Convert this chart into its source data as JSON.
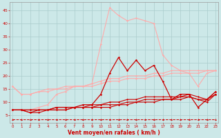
{
  "background_color": "#cce8e8",
  "grid_color": "#aacccc",
  "xlabel": "Vent moyen/en rafales ( km/h )",
  "xlabel_color": "#cc0000",
  "ylabel_color": "#cc0000",
  "yticks": [
    5,
    10,
    15,
    20,
    25,
    30,
    35,
    40,
    45
  ],
  "xticks": [
    0,
    1,
    2,
    3,
    4,
    5,
    6,
    7,
    8,
    9,
    10,
    11,
    12,
    13,
    14,
    15,
    16,
    17,
    18,
    19,
    20,
    21,
    22,
    23
  ],
  "xlim": [
    -0.3,
    23.3
  ],
  "ylim": [
    2,
    48
  ],
  "x": [
    0,
    1,
    2,
    3,
    4,
    5,
    6,
    7,
    8,
    9,
    10,
    11,
    12,
    13,
    14,
    15,
    16,
    17,
    18,
    19,
    20,
    21,
    22,
    23
  ],
  "lines": [
    {
      "y": [
        7,
        7,
        6,
        6,
        7,
        7,
        7,
        8,
        8,
        8,
        8,
        8,
        9,
        9,
        10,
        10,
        10,
        11,
        11,
        11,
        12,
        11,
        10,
        13
      ],
      "color": "#cc0000",
      "lw": 0.8,
      "marker": "D",
      "ms": 1.2,
      "zorder": 5
    },
    {
      "y": [
        7,
        7,
        6,
        7,
        7,
        7,
        7,
        8,
        8,
        8,
        9,
        9,
        9,
        10,
        10,
        11,
        11,
        11,
        11,
        12,
        12,
        11,
        11,
        14
      ],
      "color": "#cc0000",
      "lw": 0.8,
      "marker": "D",
      "ms": 1.2,
      "zorder": 5
    },
    {
      "y": [
        7,
        7,
        7,
        7,
        7,
        8,
        8,
        8,
        8,
        9,
        9,
        10,
        10,
        11,
        11,
        12,
        12,
        12,
        12,
        12,
        13,
        12,
        11,
        14
      ],
      "color": "#cc0000",
      "lw": 0.8,
      "marker": "D",
      "ms": 1.2,
      "zorder": 5
    },
    {
      "y": [
        7,
        7,
        7,
        7,
        7,
        8,
        8,
        8,
        9,
        9,
        13,
        21,
        27,
        22,
        26,
        22,
        24,
        18,
        11,
        13,
        13,
        8,
        11,
        13
      ],
      "color": "#cc0000",
      "lw": 0.9,
      "marker": "D",
      "ms": 1.4,
      "zorder": 6
    },
    {
      "y": [
        16,
        13,
        13,
        14,
        14,
        15,
        15,
        16,
        16,
        16,
        17,
        18,
        18,
        19,
        19,
        19,
        20,
        20,
        21,
        21,
        21,
        21,
        22,
        22
      ],
      "color": "#ffaaaa",
      "lw": 0.8,
      "marker": "D",
      "ms": 1.2,
      "zorder": 4
    },
    {
      "y": [
        16,
        13,
        13,
        14,
        15,
        15,
        16,
        16,
        16,
        17,
        18,
        19,
        19,
        20,
        20,
        20,
        21,
        21,
        22,
        22,
        22,
        22,
        22,
        22
      ],
      "color": "#ffaaaa",
      "lw": 0.8,
      "marker": "D",
      "ms": 1.2,
      "zorder": 4
    },
    {
      "y": [
        7,
        7,
        7,
        8,
        9,
        13,
        14,
        16,
        16,
        17,
        32,
        46,
        43,
        41,
        42,
        41,
        40,
        28,
        24,
        22,
        21,
        16,
        21,
        22
      ],
      "color": "#ffaaaa",
      "lw": 0.8,
      "marker": "D",
      "ms": 1.2,
      "zorder": 4
    },
    {
      "y": [
        3.5,
        3.5,
        3.5,
        3.5,
        3.5,
        3.5,
        3.5,
        3.5,
        3.5,
        3.5,
        3.5,
        3.5,
        3.5,
        3.5,
        3.5,
        3.5,
        3.5,
        3.5,
        3.5,
        3.5,
        3.5,
        3.5,
        3.5,
        3.5
      ],
      "color": "#cc0000",
      "lw": 0.7,
      "marker": "^",
      "ms": 1.5,
      "linestyle": "--",
      "zorder": 3
    }
  ]
}
